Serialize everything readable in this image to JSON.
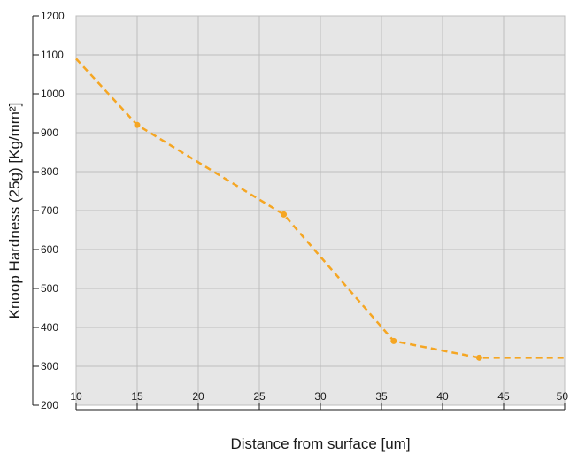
{
  "chart_data": {
    "type": "line",
    "title": "",
    "xlabel": "Distance from surface [um]",
    "ylabel": "Knoop Hardness (25g) [Kg/mm²]",
    "xlim": [
      10,
      50
    ],
    "ylim": [
      200,
      1200
    ],
    "xticks": [
      10,
      15,
      20,
      25,
      30,
      35,
      40,
      45,
      50
    ],
    "yticks": [
      200,
      300,
      400,
      500,
      600,
      700,
      800,
      900,
      1000,
      1100,
      1200
    ],
    "grid": true,
    "legend": "none",
    "colors": {
      "plot_background": "#e6e6e6",
      "grid": "#bdbdbd",
      "series": "#f5a623",
      "axis": "#1a1a1a"
    },
    "series": [
      {
        "style": "dashed",
        "x": [
          10,
          15,
          27,
          36,
          43,
          50
        ],
        "y": [
          1090,
          920,
          690,
          365,
          322,
          322
        ],
        "markers": [
          false,
          true,
          true,
          true,
          true,
          false
        ]
      }
    ]
  }
}
